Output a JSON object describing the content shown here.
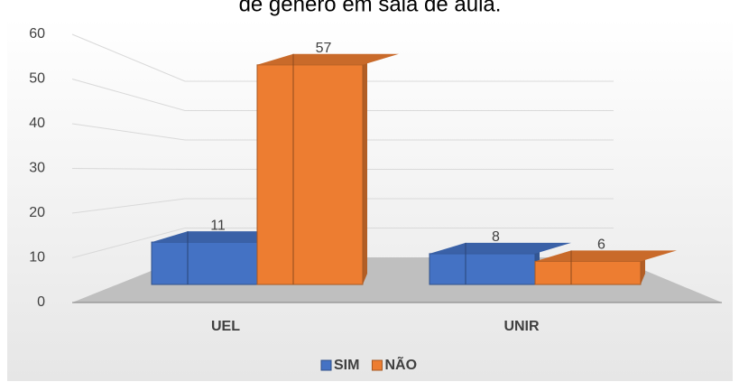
{
  "chart_data": {
    "type": "bar3d",
    "title": "de gênero em sala de aula.",
    "categories": [
      "UEL",
      "UNIR"
    ],
    "series": [
      {
        "name": "SIM",
        "color": "#4472c4",
        "values": [
          11,
          8
        ]
      },
      {
        "name": "NÃO",
        "color": "#ed7d31",
        "values": [
          57,
          6
        ]
      }
    ],
    "ylim": [
      0,
      60
    ],
    "yticks": [
      0,
      10,
      20,
      30,
      40,
      50,
      60
    ],
    "grid": true,
    "legend": "bottom"
  }
}
